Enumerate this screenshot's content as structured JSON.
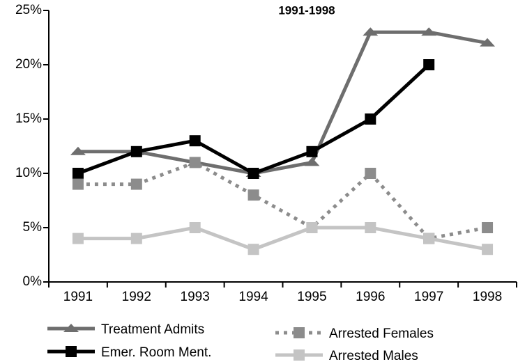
{
  "chart_data": {
    "type": "line",
    "title": "1991-1998",
    "categories": [
      "1991",
      "1992",
      "1993",
      "1994",
      "1995",
      "1996",
      "1997",
      "1998"
    ],
    "ylim": [
      0,
      25
    ],
    "yticks": [
      {
        "value": 0,
        "label": "0%"
      },
      {
        "value": 5,
        "label": "5%"
      },
      {
        "value": 10,
        "label": "10%"
      },
      {
        "value": 15,
        "label": "15%"
      },
      {
        "value": 20,
        "label": "20%"
      },
      {
        "value": 25,
        "label": "25%"
      }
    ],
    "grid": false,
    "legend": "bottom",
    "series": [
      {
        "name": "Treatment Admits",
        "color": "#6e6e6e",
        "marker": "triangle",
        "dashed": false,
        "values": [
          12,
          12,
          11,
          10,
          11,
          23,
          23,
          22
        ]
      },
      {
        "name": "Emer. Room Ment.",
        "color": "#000000",
        "marker": "square",
        "dashed": false,
        "values": [
          10,
          12,
          13,
          10,
          12,
          15,
          20,
          null
        ]
      },
      {
        "name": "Arrested Females",
        "color": "#8c8c8c",
        "marker": "square",
        "dashed": true,
        "values": [
          9,
          9,
          11,
          8,
          5,
          10,
          4,
          5
        ]
      },
      {
        "name": "Arrested Males",
        "color": "#c4c4c4",
        "marker": "square",
        "dashed": false,
        "values": [
          4,
          4,
          5,
          3,
          5,
          5,
          4,
          3
        ]
      }
    ]
  }
}
